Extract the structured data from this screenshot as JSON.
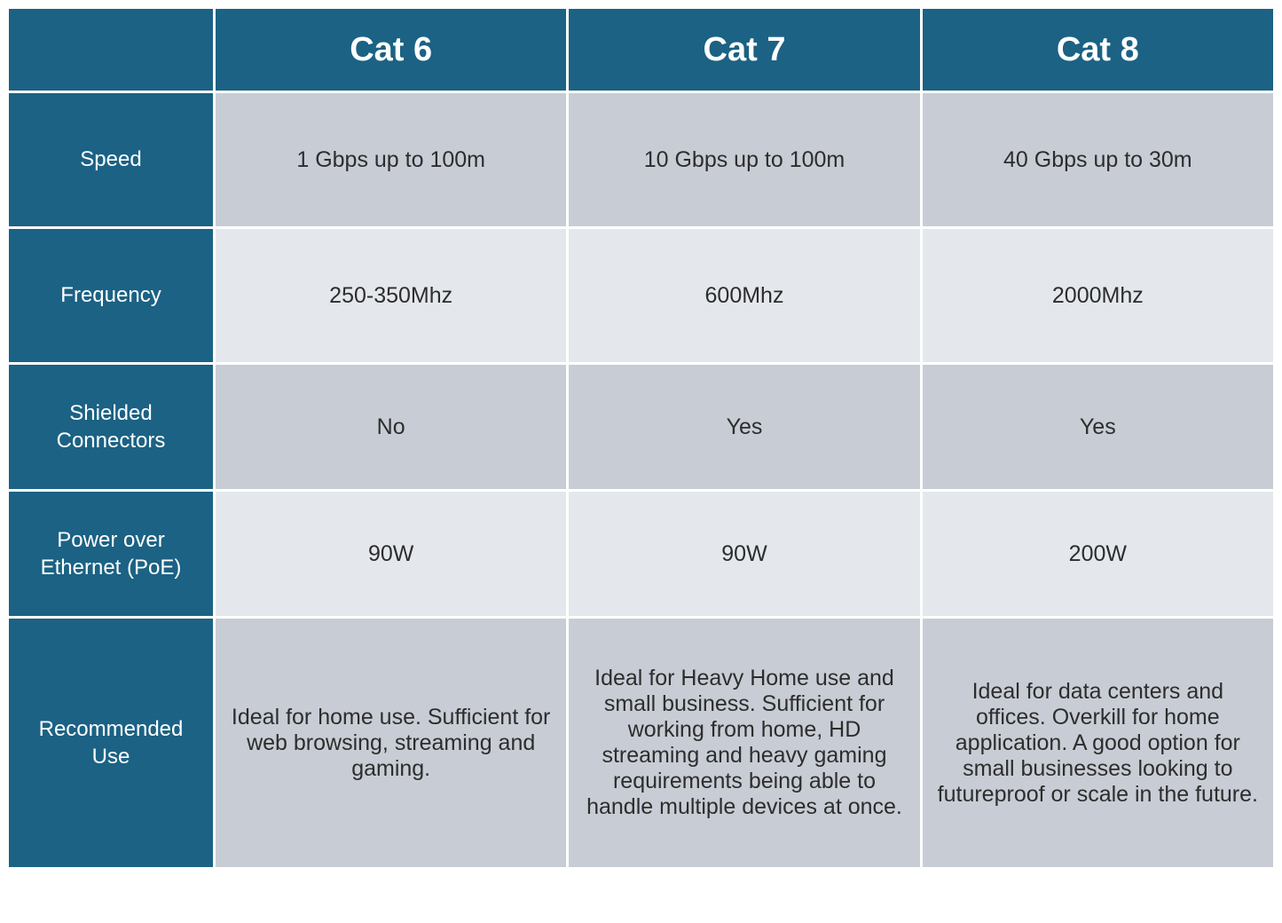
{
  "table": {
    "type": "table",
    "colors": {
      "header_bg": "#1b6284",
      "header_text": "#ffffff",
      "row_label_bg": "#1b6284",
      "row_label_text": "#ffffff",
      "odd_row_bg": "#c8cdd5",
      "even_row_bg": "#e4e8ed",
      "cell_text": "#2d2d2d",
      "gap_color": "#ffffff"
    },
    "typography": {
      "header_fontsize": 38,
      "header_fontweight": 700,
      "row_label_fontsize": 24,
      "cell_fontsize": 25,
      "poe_cell_fontsize": 22,
      "recommended_fontsize": 24
    },
    "columns": [
      "Cat 6",
      "Cat 7",
      "Cat 8"
    ],
    "rows": [
      {
        "label": "Speed",
        "values": [
          "1 Gbps up to 100m",
          "10 Gbps up to 100m",
          "40 Gbps up to 30m"
        ]
      },
      {
        "label": "Frequency",
        "values": [
          "250-350Mhz",
          "600Mhz",
          "2000Mhz"
        ]
      },
      {
        "label": "Shielded Connectors",
        "values": [
          "No",
          "Yes",
          "Yes"
        ]
      },
      {
        "label": "Power over Ethernet (PoE)",
        "values": [
          "90W",
          "90W",
          "200W"
        ]
      },
      {
        "label": "Recommended Use",
        "values": [
          "Ideal for home use.  Sufficient for web browsing, streaming and gaming.",
          "Ideal for Heavy Home use and small business.  Sufficient for working from home, HD streaming and heavy gaming requirements being able to handle multiple devices at once.",
          "Ideal for data centers and offices.  Overkill for home application.  A good option for small businesses looking to futureproof or scale in the future."
        ]
      }
    ]
  }
}
